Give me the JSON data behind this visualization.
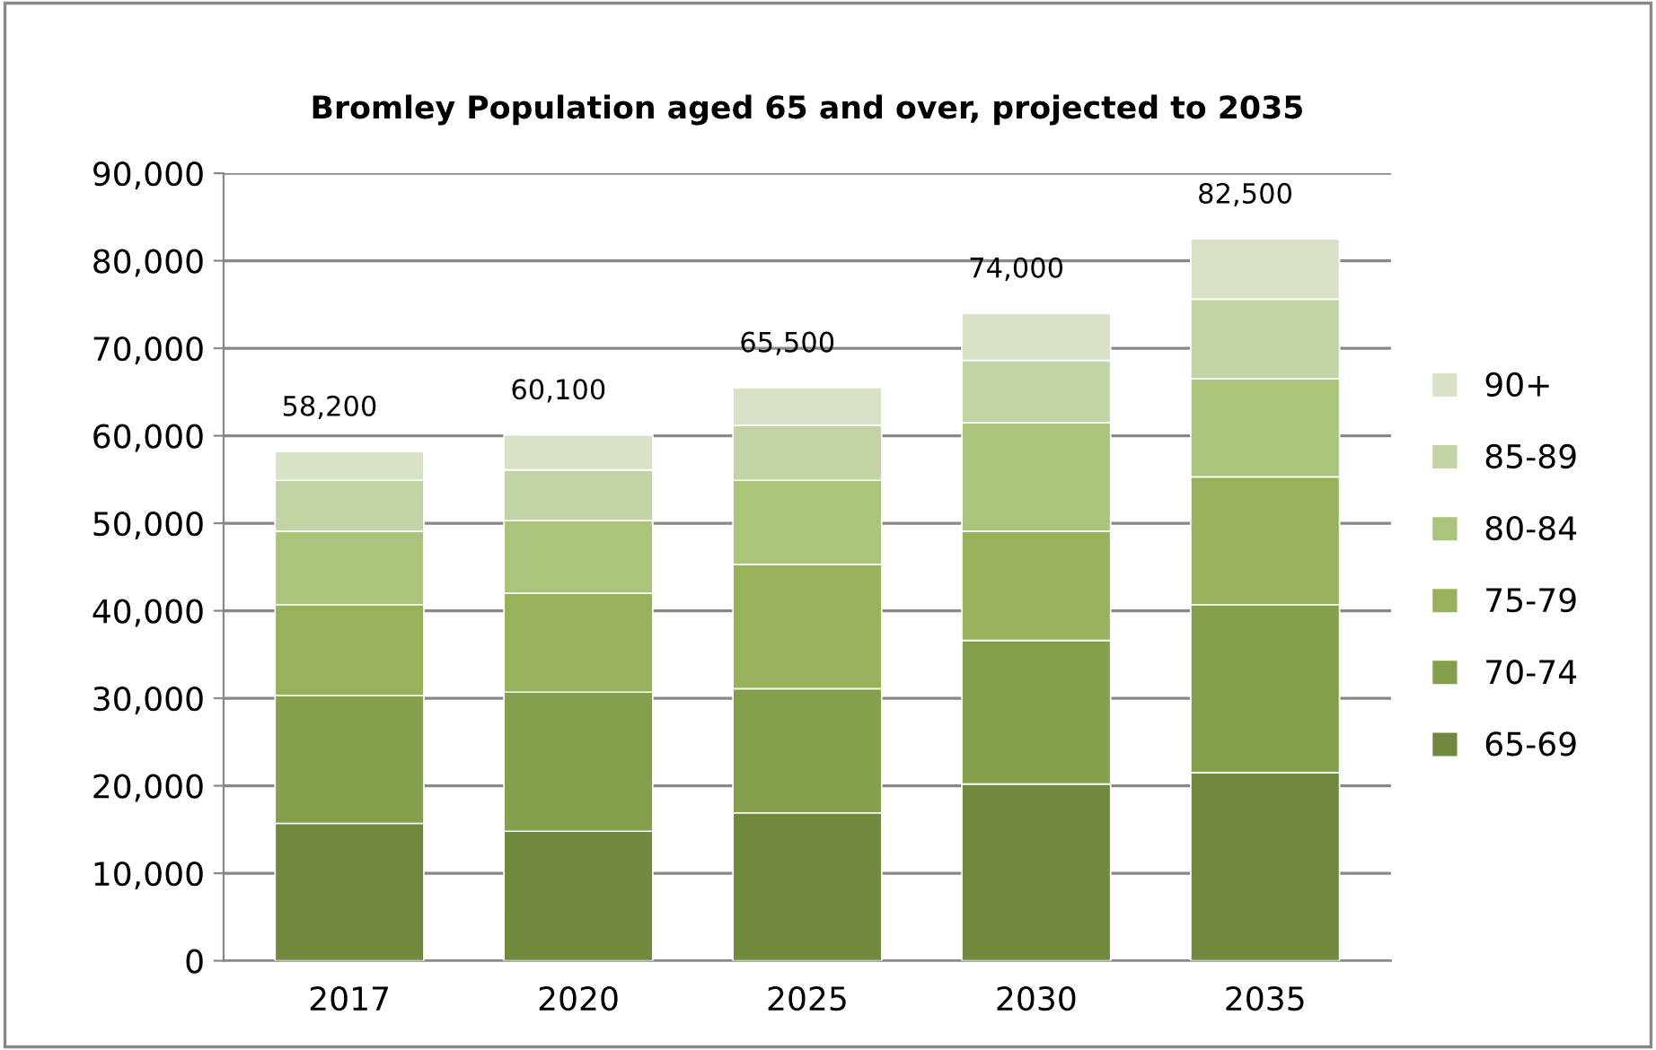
{
  "chart_data": {
    "type": "bar",
    "title": "Bromley Population aged 65 and over, projected to 2035",
    "categories": [
      "2017",
      "2020",
      "2025",
      "2030",
      "2035"
    ],
    "stacked": true,
    "series": [
      {
        "name": "65-69",
        "color": "#71893f",
        "values": [
          15700,
          14800,
          16900,
          20200,
          21500
        ]
      },
      {
        "name": "70-74",
        "color": "#85a04c",
        "values": [
          14600,
          15900,
          14200,
          16400,
          19200
        ]
      },
      {
        "name": "75-79",
        "color": "#97b25a",
        "values": [
          10400,
          11300,
          14200,
          12500,
          14600
        ]
      },
      {
        "name": "80-84",
        "color": "#aac47b",
        "values": [
          8400,
          8300,
          9600,
          12400,
          11200
        ]
      },
      {
        "name": "85-89",
        "color": "#c2d3a5",
        "values": [
          5800,
          5800,
          6300,
          7100,
          9100
        ]
      },
      {
        "name": "90+",
        "color": "#d7e2c6",
        "values": [
          3300,
          4000,
          4300,
          5400,
          6900
        ]
      }
    ],
    "totals": [
      "58,200",
      "60,100",
      "65,500",
      "74,000",
      "82,500"
    ],
    "ylim": [
      0,
      90000
    ],
    "yticks": [
      0,
      {
        "value": 10000,
        "label": "10,000"
      },
      {
        "value": 20000,
        "label": "20,000"
      },
      {
        "value": 30000,
        "label": "30,000"
      },
      {
        "value": 40000,
        "label": "40,000"
      },
      {
        "value": 50000,
        "label": "50,000"
      },
      {
        "value": 60000,
        "label": "60,000"
      },
      {
        "value": 70000,
        "label": "70,000"
      },
      {
        "value": 80000,
        "label": "80,000"
      },
      {
        "value": 90000,
        "label": "90,000"
      }
    ],
    "grid": "y",
    "legend": "right"
  }
}
